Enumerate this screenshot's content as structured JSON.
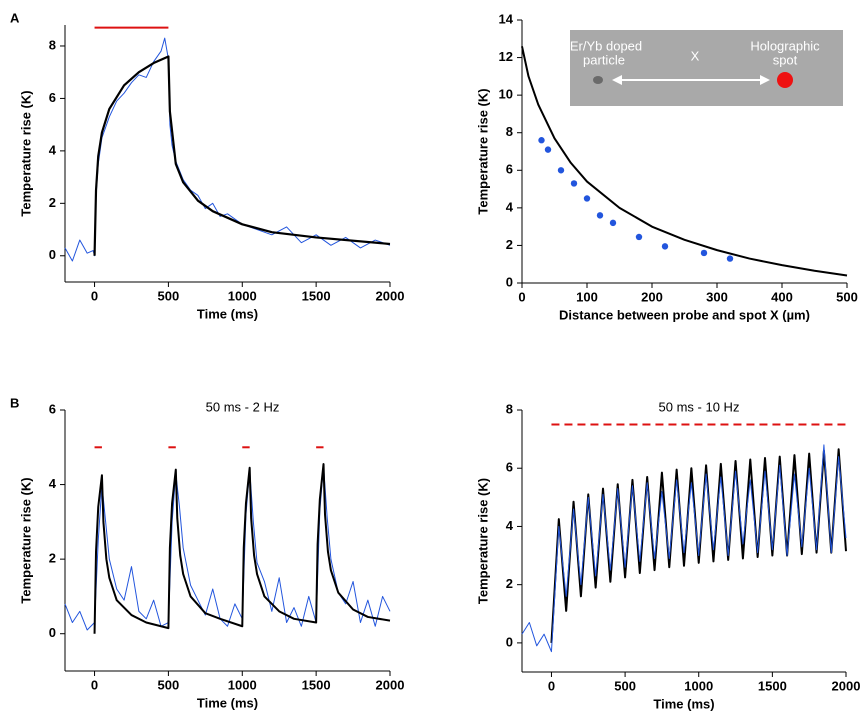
{
  "chart_data": [
    {
      "type": "line",
      "panel_label": "A",
      "xlabel": "Time (ms)",
      "ylabel": "Temperature rise (K)",
      "xlim": [
        -200,
        2000
      ],
      "xticks": [
        0,
        500,
        1000,
        1500,
        2000
      ],
      "ylim": [
        -1,
        8.8
      ],
      "yticks": [
        0,
        2,
        4,
        6,
        8
      ],
      "series": [
        {
          "color": "#2255dd",
          "width": 1,
          "x": [
            -200,
            -150,
            -100,
            -50,
            -10,
            0,
            10,
            25,
            50,
            75,
            100,
            150,
            200,
            250,
            300,
            350,
            400,
            450,
            475,
            500,
            510,
            525,
            550,
            600,
            650,
            700,
            750,
            800,
            850,
            900,
            1000,
            1100,
            1200,
            1300,
            1400,
            1500,
            1600,
            1700,
            1800,
            1900,
            2000
          ],
          "values": [
            0.3,
            -0.2,
            0.6,
            0.1,
            0.2,
            0,
            2.3,
            3.5,
            4.5,
            4.9,
            5.3,
            5.9,
            6.2,
            6.6,
            6.9,
            6.8,
            7.4,
            7.8,
            8.3,
            7.5,
            5.0,
            4.2,
            3.6,
            2.9,
            2.5,
            2.3,
            1.8,
            2.0,
            1.5,
            1.6,
            1.2,
            1.0,
            0.8,
            1.1,
            0.5,
            0.8,
            0.4,
            0.7,
            0.3,
            0.6,
            0.4
          ]
        },
        {
          "color": "#000000",
          "width": 2.2,
          "x": [
            0,
            10,
            25,
            50,
            100,
            200,
            300,
            400,
            500,
            510,
            550,
            600,
            700,
            800,
            1000,
            1200,
            1500,
            2000
          ],
          "values": [
            0,
            2.5,
            3.8,
            4.7,
            5.6,
            6.5,
            7.0,
            7.35,
            7.6,
            5.5,
            3.5,
            2.8,
            2.1,
            1.7,
            1.2,
            0.9,
            0.7,
            0.45
          ]
        },
        {
          "color": "#dd1111",
          "width": 2,
          "x": [
            0,
            500
          ],
          "values": [
            8.7,
            8.7
          ]
        }
      ]
    },
    {
      "type": "line",
      "xlabel": "Distance between probe and spot X (µm)",
      "ylabel": "Temperature rise (K)",
      "xlim": [
        0,
        500
      ],
      "xticks": [
        0,
        100,
        200,
        300,
        400,
        500
      ],
      "ylim": [
        0,
        14
      ],
      "yticks": [
        0,
        2,
        4,
        6,
        8,
        10,
        12,
        14
      ],
      "annotations": [
        "Er/Yb doped",
        "particle",
        "X",
        "Holographic",
        "spot"
      ],
      "series": [
        {
          "color": "#000000",
          "width": 2,
          "x": [
            0,
            10,
            25,
            50,
            75,
            100,
            150,
            200,
            250,
            300,
            350,
            400,
            450,
            500
          ],
          "values": [
            12.6,
            11,
            9.5,
            7.7,
            6.4,
            5.4,
            4.0,
            3.0,
            2.3,
            1.75,
            1.3,
            0.95,
            0.65,
            0.4
          ]
        },
        {
          "color": "#2255dd",
          "markers": true,
          "x": [
            30,
            40,
            60,
            80,
            100,
            120,
            140,
            180,
            220,
            280,
            320
          ],
          "values": [
            7.6,
            7.1,
            6.0,
            5.3,
            4.5,
            3.6,
            3.2,
            2.45,
            1.95,
            1.6,
            1.3
          ]
        }
      ]
    },
    {
      "type": "line",
      "panel_label": "B",
      "title": "50 ms - 2 Hz",
      "xlabel": "Time (ms)",
      "ylabel": "Temperature rise (K)",
      "xlim": [
        -200,
        2000
      ],
      "xticks": [
        0,
        500,
        1000,
        1500,
        2000
      ],
      "ylim": [
        -1,
        6
      ],
      "yticks": [
        0,
        2,
        4,
        6
      ],
      "series": [
        {
          "color": "#2255dd",
          "width": 1,
          "x": [
            -200,
            -150,
            -100,
            -50,
            0,
            25,
            50,
            75,
            100,
            150,
            200,
            250,
            300,
            350,
            400,
            450,
            500,
            525,
            550,
            575,
            600,
            650,
            700,
            750,
            800,
            850,
            900,
            950,
            1000,
            1025,
            1050,
            1075,
            1100,
            1150,
            1200,
            1250,
            1300,
            1350,
            1400,
            1450,
            1500,
            1525,
            1550,
            1575,
            1600,
            1650,
            1700,
            1750,
            1800,
            1850,
            1900,
            1950,
            2000
          ],
          "values": [
            0.8,
            0.3,
            0.6,
            0.1,
            0.3,
            2.5,
            4.0,
            3.0,
            2.0,
            1.2,
            0.9,
            1.8,
            0.6,
            0.4,
            0.9,
            0.2,
            0.3,
            3.0,
            4.3,
            3.4,
            2.3,
            1.3,
            0.9,
            0.5,
            1.2,
            0.4,
            0.2,
            0.8,
            0.4,
            3.2,
            4.4,
            3.0,
            1.9,
            1.4,
            0.6,
            1.5,
            0.3,
            0.7,
            0.2,
            1.0,
            0.3,
            3.3,
            4.5,
            3.1,
            2.0,
            1.1,
            0.8,
            1.4,
            0.3,
            0.9,
            0.2,
            1.0,
            0.6
          ]
        },
        {
          "color": "#000000",
          "width": 2,
          "x": [
            0,
            10,
            25,
            50,
            60,
            80,
            100,
            150,
            250,
            350,
            500,
            510,
            525,
            550,
            560,
            580,
            600,
            650,
            750,
            850,
            1000,
            1010,
            1025,
            1050,
            1060,
            1080,
            1100,
            1150,
            1250,
            1350,
            1500,
            1510,
            1525,
            1550,
            1560,
            1580,
            1600,
            1650,
            1750,
            1850,
            2000
          ],
          "values": [
            0,
            2.2,
            3.4,
            4.25,
            3.0,
            2.0,
            1.5,
            0.9,
            0.5,
            0.3,
            0.15,
            2.3,
            3.5,
            4.4,
            3.1,
            2.1,
            1.6,
            1.0,
            0.55,
            0.4,
            0.2,
            2.3,
            3.5,
            4.45,
            3.1,
            2.1,
            1.6,
            1.0,
            0.6,
            0.4,
            0.3,
            2.4,
            3.6,
            4.55,
            3.2,
            2.2,
            1.7,
            1.1,
            0.65,
            0.45,
            0.35
          ]
        },
        {
          "color": "#dd1111",
          "width": 2,
          "x": [
            0,
            50
          ],
          "values": [
            5,
            5
          ]
        },
        {
          "color": "#dd1111",
          "width": 2,
          "x": [
            500,
            550
          ],
          "values": [
            5,
            5
          ]
        },
        {
          "color": "#dd1111",
          "width": 2,
          "x": [
            1000,
            1050
          ],
          "values": [
            5,
            5
          ]
        },
        {
          "color": "#dd1111",
          "width": 2,
          "x": [
            1500,
            1550
          ],
          "values": [
            5,
            5
          ]
        }
      ]
    },
    {
      "type": "line",
      "title": "50 ms - 10 Hz",
      "xlabel": "Time (ms)",
      "ylabel": "Temperature rise (K)",
      "xlim": [
        -200,
        2000
      ],
      "xticks": [
        0,
        500,
        1000,
        1500,
        2000
      ],
      "ylim": [
        -1,
        8
      ],
      "yticks": [
        0,
        2,
        4,
        6,
        8
      ],
      "series": [
        {
          "color": "#000000",
          "width": 2,
          "x": [
            0,
            50,
            100,
            150,
            200,
            250,
            300,
            350,
            400,
            450,
            500,
            550,
            600,
            650,
            700,
            750,
            800,
            850,
            900,
            950,
            1000,
            1050,
            1100,
            1150,
            1200,
            1250,
            1300,
            1350,
            1400,
            1450,
            1500,
            1550,
            1600,
            1650,
            1700,
            1750,
            1800,
            1850,
            1900,
            1950,
            2000
          ],
          "values": [
            0,
            4.25,
            1.1,
            4.85,
            1.6,
            5.1,
            1.9,
            5.3,
            2.1,
            5.45,
            2.25,
            5.6,
            2.4,
            5.7,
            2.5,
            5.85,
            2.6,
            5.95,
            2.65,
            6.0,
            2.75,
            6.1,
            2.8,
            6.15,
            2.85,
            6.25,
            2.9,
            6.3,
            2.95,
            6.35,
            3.0,
            6.4,
            3.0,
            6.45,
            3.05,
            6.5,
            3.1,
            6.6,
            3.1,
            6.65,
            3.15
          ]
        },
        {
          "color": "#2255dd",
          "width": 1,
          "x": [
            -200,
            -150,
            -100,
            -50,
            0,
            50,
            100,
            150,
            200,
            250,
            300,
            350,
            400,
            450,
            500,
            550,
            600,
            650,
            700,
            750,
            800,
            850,
            900,
            950,
            1000,
            1050,
            1100,
            1150,
            1200,
            1250,
            1300,
            1350,
            1400,
            1450,
            1500,
            1550,
            1600,
            1650,
            1700,
            1750,
            1800,
            1850,
            1900,
            1950,
            2000
          ],
          "values": [
            0.3,
            0.7,
            -0.1,
            0.3,
            -0.3,
            4.0,
            1.6,
            4.6,
            2.0,
            5.0,
            2.3,
            5.1,
            2.5,
            5.3,
            2.6,
            5.4,
            2.8,
            5.5,
            2.9,
            5.2,
            2.9,
            5.6,
            3.1,
            5.5,
            3.0,
            5.8,
            3.2,
            5.7,
            3.0,
            5.9,
            3.4,
            5.6,
            3.1,
            5.9,
            3.2,
            6.1,
            3.0,
            5.8,
            3.3,
            6.0,
            3.2,
            6.8,
            3.1,
            6.4,
            3.6
          ]
        },
        {
          "color": "#dd1111",
          "width": 2,
          "dashed": true,
          "x": [
            0,
            2000
          ],
          "values": [
            7.5,
            7.5
          ]
        }
      ]
    }
  ]
}
